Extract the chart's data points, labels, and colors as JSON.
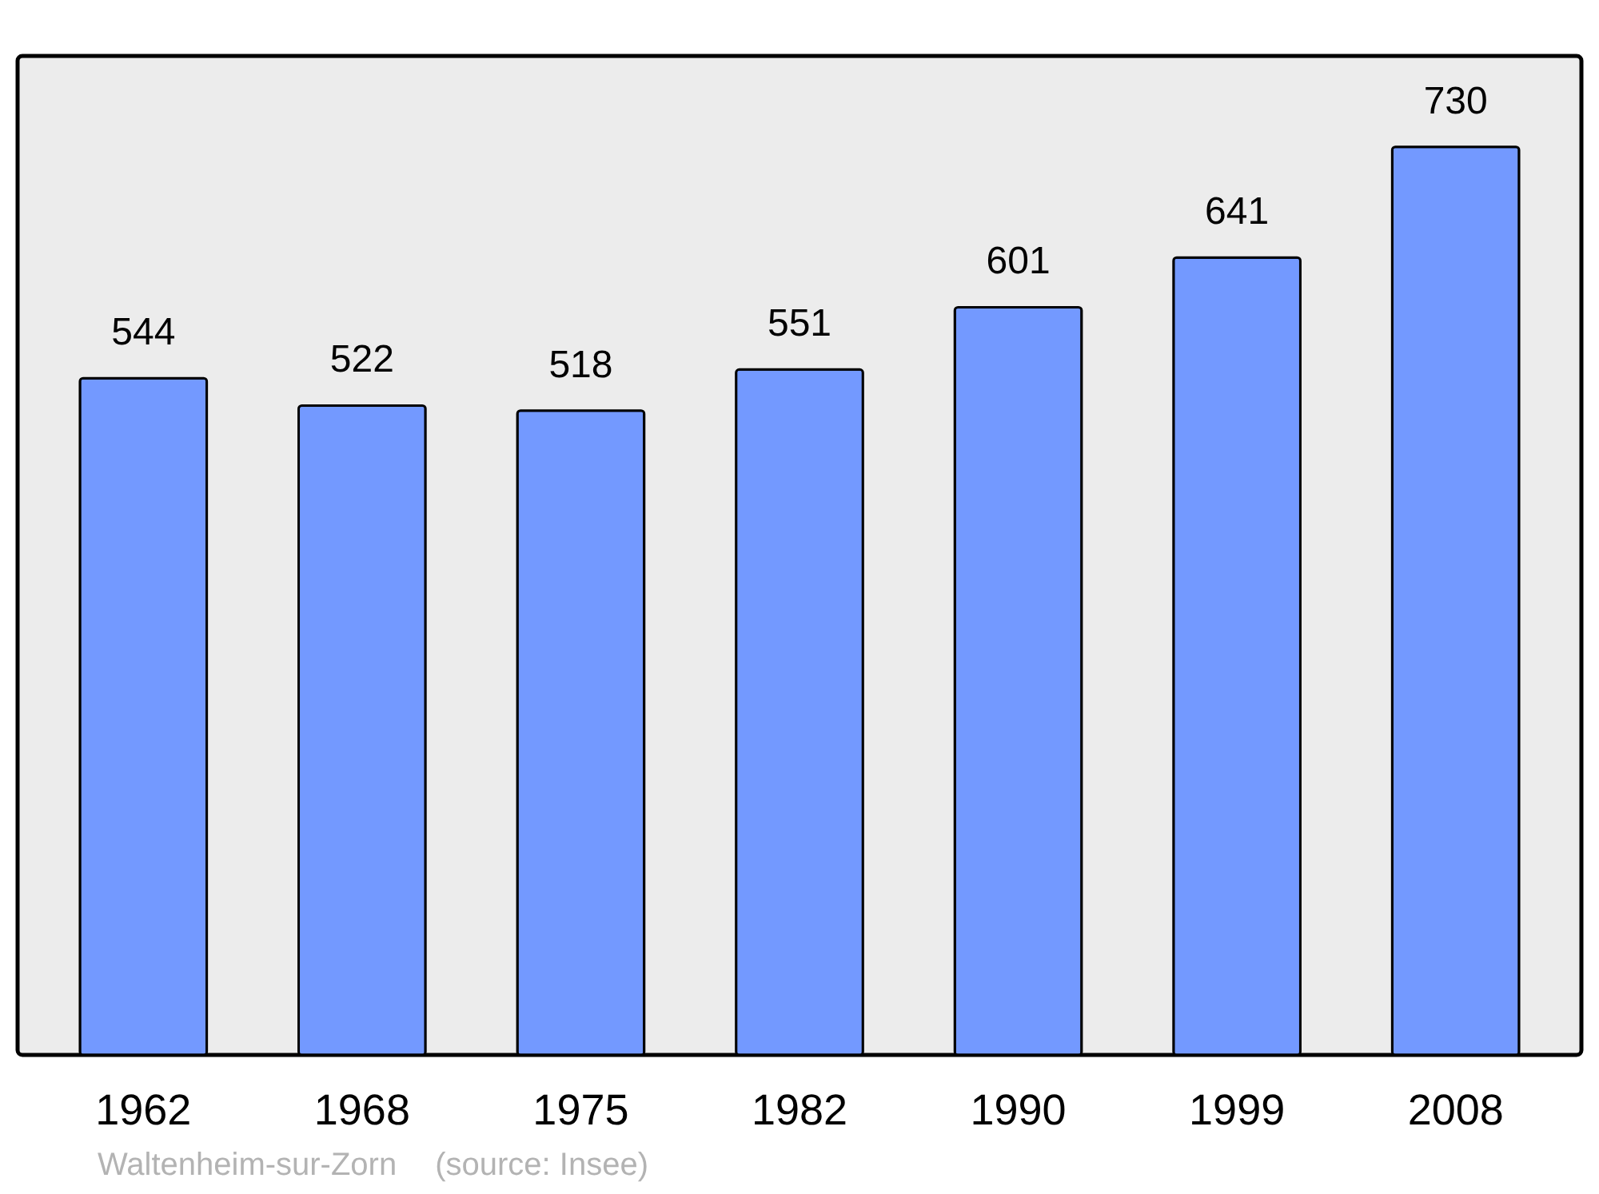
{
  "chart_data": {
    "type": "bar",
    "categories": [
      "1962",
      "1968",
      "1975",
      "1982",
      "1990",
      "1999",
      "2008"
    ],
    "values": [
      544,
      522,
      518,
      551,
      601,
      641,
      730
    ],
    "color": "#7399ff",
    "ylim": [
      0,
      803
    ],
    "data_labels": true,
    "annotations": [
      "Waltenheim-sur-Zorn",
      "(source: Insee)"
    ]
  }
}
